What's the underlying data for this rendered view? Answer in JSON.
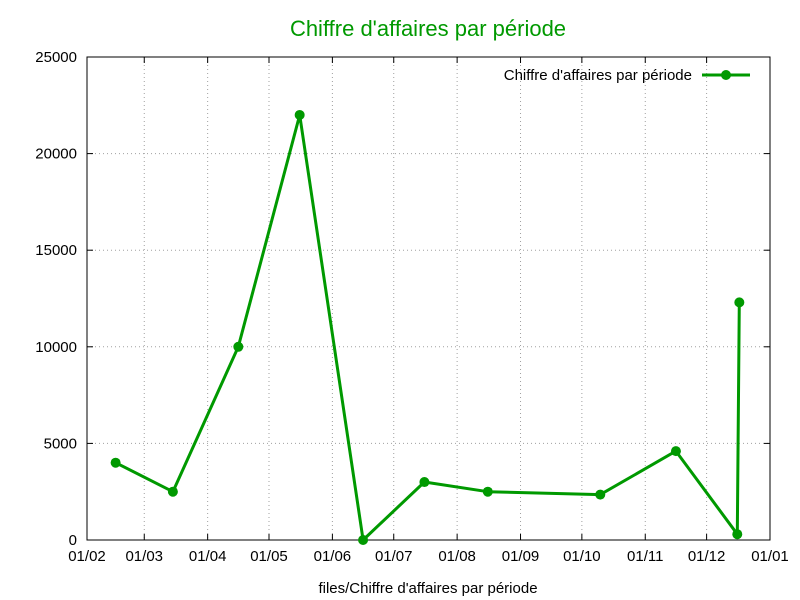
{
  "chart_data": {
    "type": "line",
    "title": "Chiffre d'affaires par période",
    "xlabel": "files/Chiffre d'affaires par période",
    "ylabel": "",
    "x_ticks": [
      "01/02",
      "01/03",
      "01/04",
      "01/05",
      "01/06",
      "01/07",
      "01/08",
      "01/09",
      "01/10",
      "01/11",
      "01/12",
      "01/01"
    ],
    "y_ticks": [
      "0",
      "5000",
      "10000",
      "15000",
      "20000",
      "25000"
    ],
    "ylim": [
      0,
      25000
    ],
    "grid": true,
    "legend_position": "top-right",
    "series": [
      {
        "name": "Chiffre d'affaires par période",
        "color": "#009900",
        "x": [
          "2023-02-15",
          "2023-03-15",
          "2023-04-16",
          "2023-05-16",
          "2023-06-16",
          "2023-07-16",
          "2023-08-16",
          "2023-10-10",
          "2023-11-16",
          "2023-12-16",
          "2023-12-17"
        ],
        "y": [
          4000,
          2500,
          10000,
          22000,
          0,
          3000,
          2500,
          2350,
          4600,
          300,
          12300
        ]
      }
    ]
  }
}
